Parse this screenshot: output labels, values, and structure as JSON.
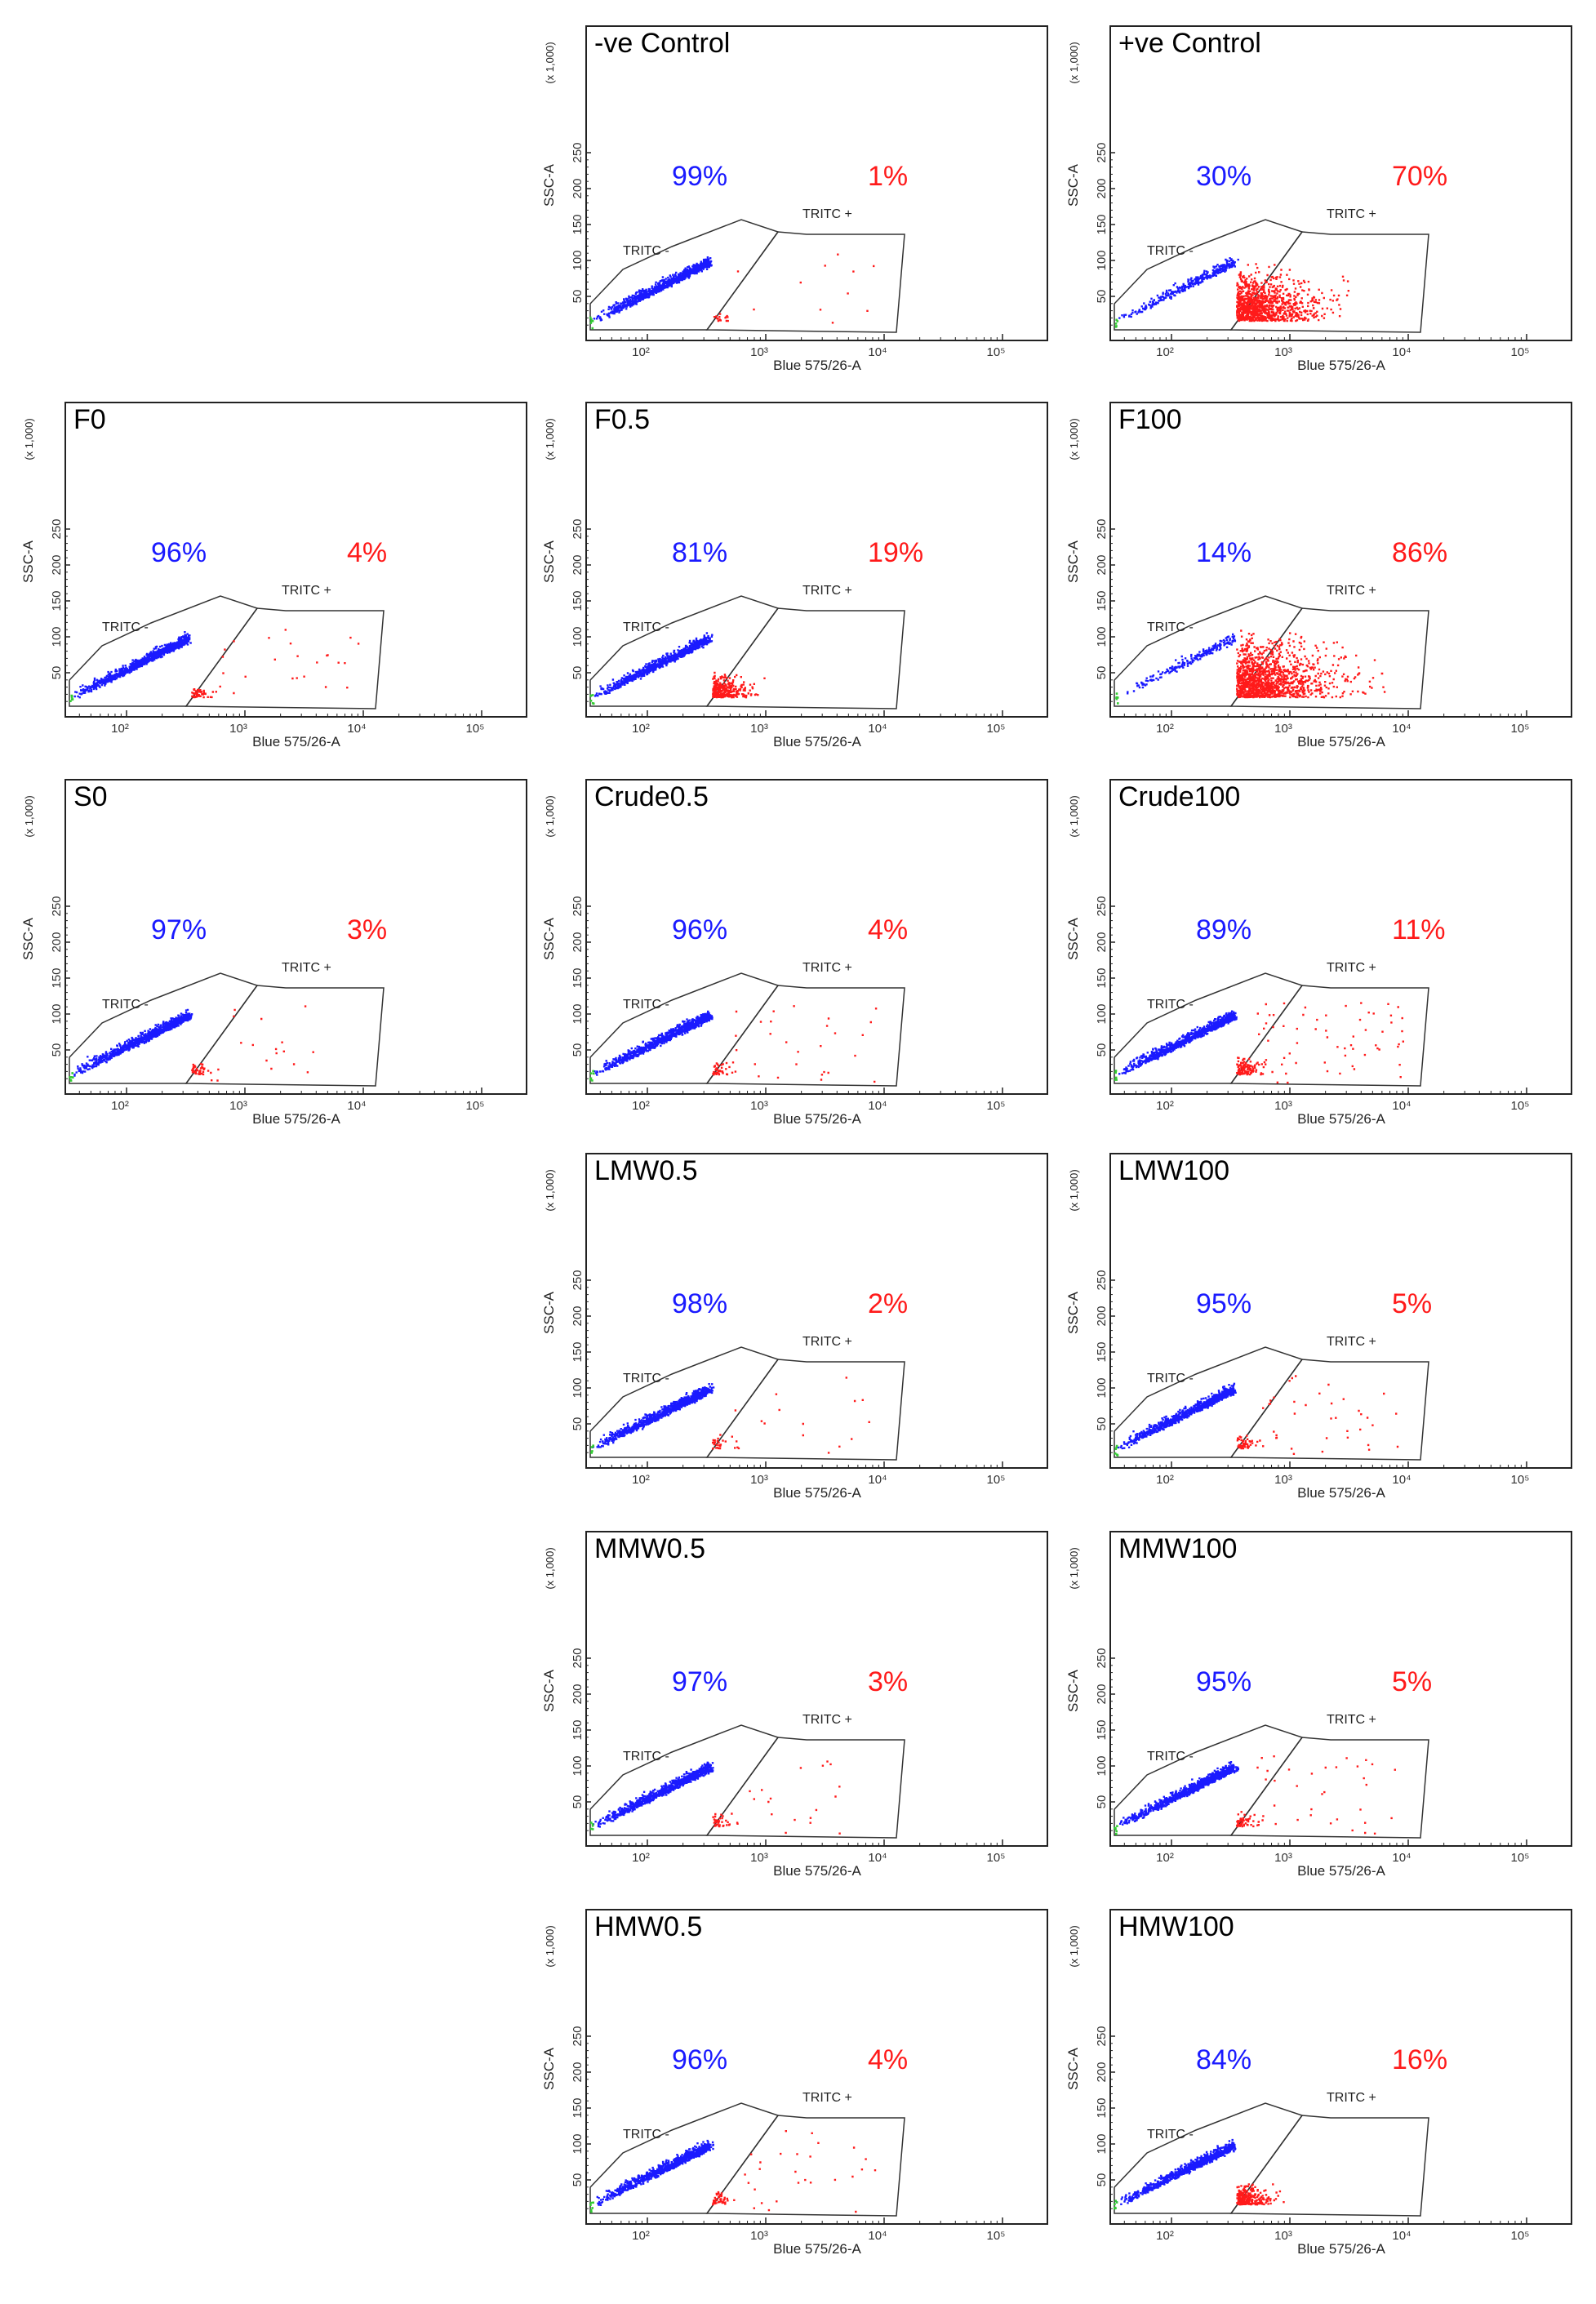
{
  "figure": {
    "axis_y_label": "SSC-A",
    "axis_y_multiplier": "(x 1,000)",
    "axis_x_label": "Blue 575/26-A",
    "gate_negative_label": "TRITC -",
    "gate_positive_label": "TRITC +",
    "y_ticks": [
      "50",
      "100",
      "150",
      "200",
      "250"
    ],
    "x_ticks": [
      "10²",
      "10³",
      "10⁴",
      "10⁵"
    ],
    "colors": {
      "negative": "#1a1aff",
      "positive": "#ff1a1a",
      "events_other": "#33cc33",
      "frame": "#222222"
    }
  },
  "chart_data": [
    {
      "type": "scatter",
      "panel": "-ve Control",
      "row": 0,
      "col": 1,
      "negative_pct": "99%",
      "positive_pct": "1%",
      "negative_value": 99,
      "positive_value": 1
    },
    {
      "type": "scatter",
      "panel": "+ve Control",
      "row": 0,
      "col": 2,
      "negative_pct": "30%",
      "positive_pct": "70%",
      "negative_value": 30,
      "positive_value": 70
    },
    {
      "type": "scatter",
      "panel": "F0",
      "row": 1,
      "col": 0,
      "negative_pct": "96%",
      "positive_pct": "4%",
      "negative_value": 96,
      "positive_value": 4
    },
    {
      "type": "scatter",
      "panel": "F0.5",
      "row": 1,
      "col": 1,
      "negative_pct": "81%",
      "positive_pct": "19%",
      "negative_value": 81,
      "positive_value": 19
    },
    {
      "type": "scatter",
      "panel": "F100",
      "row": 1,
      "col": 2,
      "negative_pct": "14%",
      "positive_pct": "86%",
      "negative_value": 14,
      "positive_value": 86
    },
    {
      "type": "scatter",
      "panel": "S0",
      "row": 2,
      "col": 0,
      "negative_pct": "97%",
      "positive_pct": "3%",
      "negative_value": 97,
      "positive_value": 3
    },
    {
      "type": "scatter",
      "panel": "Crude0.5",
      "row": 2,
      "col": 1,
      "negative_pct": "96%",
      "positive_pct": "4%",
      "negative_value": 96,
      "positive_value": 4
    },
    {
      "type": "scatter",
      "panel": "Crude100",
      "row": 2,
      "col": 2,
      "negative_pct": "89%",
      "positive_pct": "11%",
      "negative_value": 89,
      "positive_value": 11
    },
    {
      "type": "scatter",
      "panel": "LMW0.5",
      "row": 3,
      "col": 1,
      "negative_pct": "98%",
      "positive_pct": "2%",
      "negative_value": 98,
      "positive_value": 2
    },
    {
      "type": "scatter",
      "panel": "LMW100",
      "row": 3,
      "col": 2,
      "negative_pct": "95%",
      "positive_pct": "5%",
      "negative_value": 95,
      "positive_value": 5
    },
    {
      "type": "scatter",
      "panel": "MMW0.5",
      "row": 4,
      "col": 1,
      "negative_pct": "97%",
      "positive_pct": "3%",
      "negative_value": 97,
      "positive_value": 3
    },
    {
      "type": "scatter",
      "panel": "MMW100",
      "row": 4,
      "col": 2,
      "negative_pct": "95%",
      "positive_pct": "5%",
      "negative_value": 95,
      "positive_value": 5
    },
    {
      "type": "scatter",
      "panel": "HMW0.5",
      "row": 5,
      "col": 1,
      "negative_pct": "96%",
      "positive_pct": "4%",
      "negative_value": 96,
      "positive_value": 4
    },
    {
      "type": "scatter",
      "panel": "HMW100",
      "row": 5,
      "col": 2,
      "negative_pct": "84%",
      "positive_pct": "16%",
      "negative_value": 84,
      "positive_value": 16
    }
  ]
}
